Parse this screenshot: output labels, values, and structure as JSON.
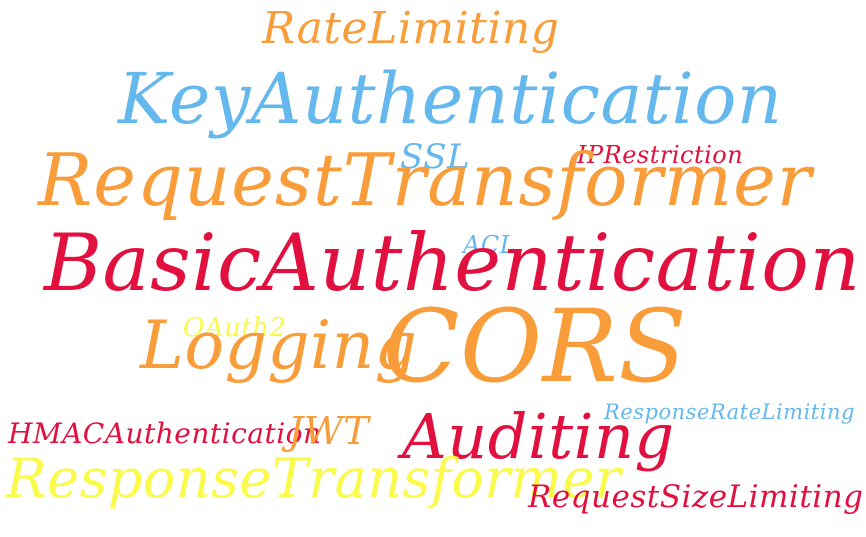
{
  "words": {
    "rate_limiting": "RateLimiting",
    "key_authentication": "KeyAuthentication",
    "ssl": "SSL",
    "ip_restriction": "IPRestriction",
    "request_transformer": "RequestTransformer",
    "acl": "ACL",
    "basic_authentication": "BasicAuthentication",
    "oauth2": "OAuth2",
    "logging": "Logging",
    "cors": "CORS",
    "hmac_authentication": "HMACAuthentication",
    "jwt": "JWT",
    "auditing": "Auditing",
    "response_rate_limiting": "ResponseRateLimiting",
    "response_transformer": "ResponseTransformer",
    "request_size_limiting": "RequestSizeLimiting"
  },
  "colors": {
    "orange": "#f89d3a",
    "blue": "#65b8ee",
    "red": "#e2103f",
    "yellow": "#fafa4a",
    "background": "#ffffff"
  }
}
